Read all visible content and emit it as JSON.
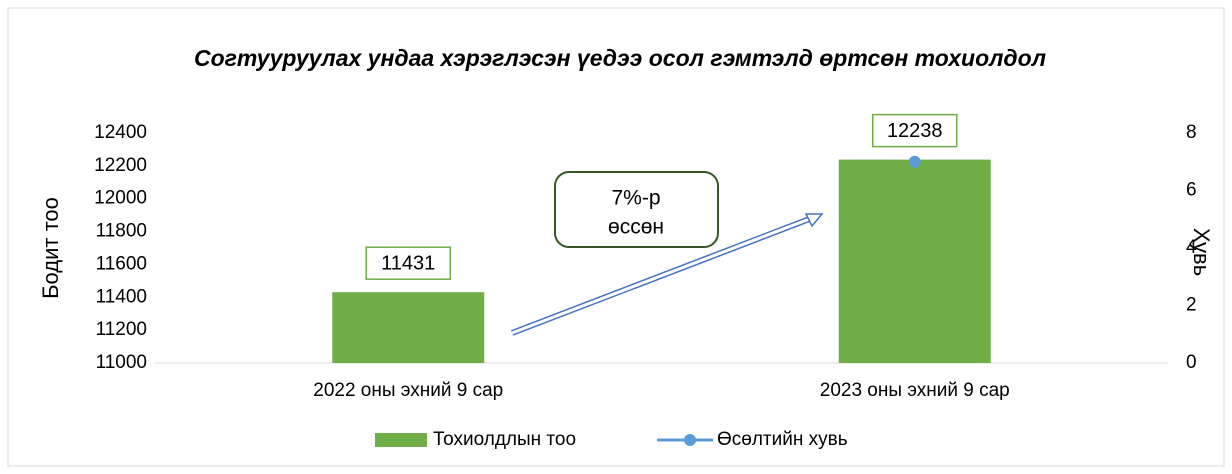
{
  "chart_data": {
    "type": "bar",
    "title": "Согтууруулах ундаа хэрэглэсэн үедээ осол гэмтэлд өртсөн тохиолдол",
    "categories": [
      "2022 оны эхний 9 сар",
      "2023 оны эхний 9 сар"
    ],
    "series": [
      {
        "name": "Тохиолдлын тоо",
        "color": "#70ad47",
        "type": "bar",
        "values": [
          11431,
          12238
        ]
      },
      {
        "name": "Өсөлтийн хувь",
        "color": "#5b9bd5",
        "type": "line",
        "axis": "y2",
        "values": [
          null,
          7
        ]
      }
    ],
    "ylabel": "Бодит тоо",
    "y2label": "Хувь",
    "ylim": [
      11000,
      12400
    ],
    "yticks": [
      11000,
      11200,
      11400,
      11600,
      11800,
      12000,
      12200,
      12400
    ],
    "y2lim": [
      0,
      8
    ],
    "y2ticks": [
      0,
      2,
      4,
      6,
      8
    ],
    "annotation": [
      "7%-р",
      "өссөн"
    ],
    "legend": "bottom",
    "grid": false
  }
}
